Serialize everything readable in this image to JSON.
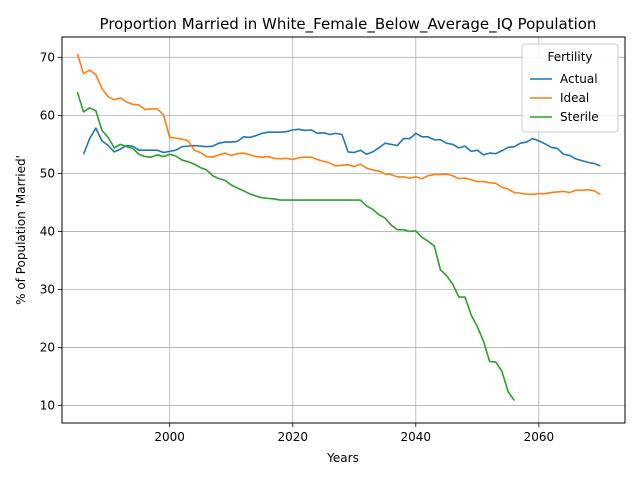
{
  "chart_data": {
    "type": "line",
    "title": "Proportion Married in White_Female_Below_Average_IQ Population",
    "xlabel": "Years",
    "ylabel": "% of Population 'Married'",
    "xlim": [
      1982.5,
      2074
    ],
    "ylim": [
      7.0,
      73.5
    ],
    "xticks": [
      2000,
      2020,
      2040,
      2060
    ],
    "yticks": [
      10,
      20,
      30,
      40,
      50,
      60,
      70
    ],
    "grid": true,
    "legend": {
      "title": "Fertility",
      "position": "top-right"
    },
    "series": [
      {
        "name": "Actual",
        "color": "#1f77b4",
        "x": [
          1986,
          1987,
          1988,
          1989,
          1990,
          1991,
          1992,
          1993,
          1994,
          1995,
          1996,
          1997,
          1998,
          1999,
          2000,
          2001,
          2002,
          2003,
          2004,
          2005,
          2006,
          2007,
          2008,
          2009,
          2010,
          2011,
          2012,
          2013,
          2014,
          2015,
          2016,
          2017,
          2018,
          2019,
          2020,
          2021,
          2022,
          2023,
          2024,
          2025,
          2026,
          2027,
          2028,
          2029,
          2030,
          2031,
          2032,
          2033,
          2034,
          2035,
          2036,
          2037,
          2038,
          2039,
          2040,
          2041,
          2042,
          2043,
          2044,
          2045,
          2046,
          2047,
          2048,
          2049,
          2050,
          2051,
          2052,
          2053,
          2054,
          2055,
          2056,
          2057,
          2058,
          2059,
          2060,
          2061,
          2062,
          2063,
          2064,
          2065,
          2066,
          2067,
          2068,
          2069,
          2070
        ],
        "y": [
          53.3,
          56.0,
          57.8,
          55.6,
          54.8,
          53.7,
          54.2,
          54.8,
          54.7,
          54.0,
          54.0,
          54.0,
          54.0,
          53.6,
          53.8,
          54.0,
          54.6,
          54.7,
          54.8,
          54.7,
          54.6,
          54.7,
          55.2,
          55.4,
          55.4,
          55.5,
          56.3,
          56.2,
          56.5,
          56.9,
          57.1,
          57.1,
          57.1,
          57.2,
          57.5,
          57.6,
          57.4,
          57.5,
          56.9,
          57.0,
          56.7,
          56.9,
          56.7,
          53.7,
          53.6,
          54.0,
          53.3,
          53.7,
          54.4,
          55.2,
          55.0,
          54.8,
          56.0,
          56.0,
          56.9,
          56.3,
          56.3,
          55.8,
          55.8,
          55.2,
          55.0,
          54.4,
          54.7,
          53.8,
          54.0,
          53.2,
          53.5,
          53.4,
          53.9,
          54.5,
          54.6,
          55.2,
          55.4,
          56.0,
          55.6,
          55.1,
          54.5,
          54.3,
          53.3,
          53.1,
          52.5,
          52.2,
          51.9,
          51.7,
          51.3
        ]
      },
      {
        "name": "Ideal",
        "color": "#ff7f0e",
        "x": [
          1985,
          1986,
          1987,
          1988,
          1989,
          1990,
          1991,
          1992,
          1993,
          1994,
          1995,
          1996,
          1997,
          1998,
          1999,
          2000,
          2001,
          2002,
          2003,
          2004,
          2005,
          2006,
          2007,
          2008,
          2009,
          2010,
          2011,
          2012,
          2013,
          2014,
          2015,
          2016,
          2017,
          2018,
          2019,
          2020,
          2021,
          2022,
          2023,
          2024,
          2025,
          2026,
          2027,
          2028,
          2029,
          2030,
          2031,
          2032,
          2033,
          2034,
          2035,
          2036,
          2037,
          2038,
          2039,
          2040,
          2041,
          2042,
          2043,
          2044,
          2045,
          2046,
          2047,
          2048,
          2049,
          2050,
          2051,
          2052,
          2053,
          2054,
          2055,
          2056,
          2057,
          2058,
          2059,
          2060,
          2061,
          2062,
          2063,
          2064,
          2065,
          2066,
          2067,
          2068,
          2069,
          2070
        ],
        "y": [
          70.6,
          67.2,
          67.8,
          67.0,
          64.6,
          63.2,
          62.7,
          63.0,
          62.3,
          61.9,
          61.8,
          61.0,
          61.1,
          61.1,
          60.1,
          56.2,
          56.1,
          55.9,
          55.6,
          54.0,
          53.6,
          52.9,
          52.8,
          53.2,
          53.5,
          53.1,
          53.4,
          53.5,
          53.2,
          52.9,
          52.8,
          52.9,
          52.6,
          52.5,
          52.6,
          52.4,
          52.7,
          52.8,
          52.8,
          52.4,
          52.1,
          51.8,
          51.3,
          51.4,
          51.5,
          51.2,
          51.6,
          50.9,
          50.6,
          50.4,
          49.9,
          49.8,
          49.4,
          49.4,
          49.2,
          49.4,
          49.1,
          49.6,
          49.8,
          49.8,
          49.9,
          49.6,
          49.1,
          49.2,
          48.9,
          48.6,
          48.6,
          48.4,
          48.3,
          47.6,
          47.3,
          46.7,
          46.6,
          46.4,
          46.4,
          46.5,
          46.5,
          46.7,
          46.8,
          46.9,
          46.7,
          47.1,
          47.1,
          47.2,
          47.0,
          46.4
        ]
      },
      {
        "name": "Sterile",
        "color": "#2ca02c",
        "x": [
          1985,
          1986,
          1987,
          1988,
          1989,
          1990,
          1991,
          1992,
          1993,
          1994,
          1995,
          1996,
          1997,
          1998,
          1999,
          2000,
          2001,
          2002,
          2003,
          2004,
          2005,
          2006,
          2007,
          2008,
          2009,
          2010,
          2011,
          2012,
          2013,
          2014,
          2015,
          2016,
          2017,
          2018,
          2019,
          2020,
          2021,
          2022,
          2023,
          2024,
          2025,
          2026,
          2027,
          2028,
          2029,
          2030,
          2031,
          2032,
          2033,
          2034,
          2035,
          2036,
          2037,
          2038,
          2039,
          2040,
          2041,
          2042,
          2043,
          2044,
          2045,
          2046,
          2047,
          2048,
          2049,
          2050,
          2051,
          2052,
          2053,
          2054,
          2055,
          2056
        ],
        "y": [
          64.0,
          60.6,
          61.3,
          60.8,
          57.4,
          56.2,
          54.4,
          55.0,
          54.6,
          54.3,
          53.3,
          52.9,
          52.8,
          53.2,
          52.9,
          53.3,
          53.0,
          52.3,
          52.0,
          51.6,
          51.0,
          50.6,
          49.6,
          49.1,
          48.8,
          48.0,
          47.5,
          47.0,
          46.5,
          46.1,
          45.8,
          45.7,
          45.6,
          45.4,
          45.4,
          45.4,
          45.4,
          45.4,
          45.4,
          45.4,
          45.4,
          45.4,
          45.4,
          45.4,
          45.4,
          45.4,
          45.4,
          44.4,
          43.8,
          42.9,
          42.3,
          41.1,
          40.3,
          40.3,
          40.0,
          40.1,
          39.0,
          38.3,
          37.5,
          33.4,
          32.4,
          30.9,
          28.7,
          28.7,
          25.6,
          23.6,
          21.1,
          17.6,
          17.5,
          15.9,
          12.4,
          10.9
        ]
      }
    ]
  }
}
